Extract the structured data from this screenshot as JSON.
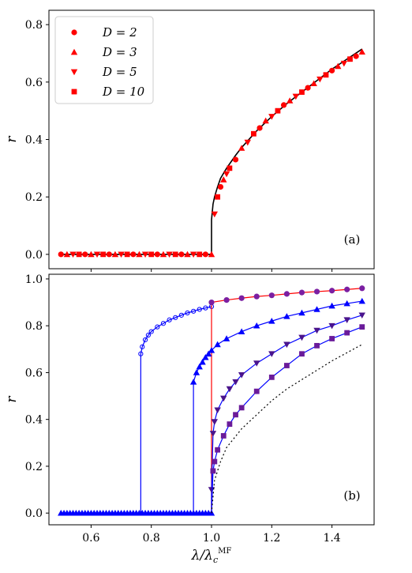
{
  "chart_data": [
    {
      "panel": "a",
      "type": "line",
      "panel_label": "(a)",
      "ylabel": "r",
      "xlabel": "",
      "xlim": [
        0.46,
        1.54
      ],
      "ylim": [
        -0.05,
        0.85
      ],
      "yticks": [
        0.0,
        0.2,
        0.4,
        0.6,
        0.8
      ],
      "ytick_labels": [
        "0.0",
        "0.2",
        "0.4",
        "0.6",
        "0.8"
      ],
      "xticks": [
        0.6,
        0.8,
        1.0,
        1.2,
        1.4
      ],
      "legend": {
        "placement": "upper-left",
        "entries": [
          {
            "label": "D = 2",
            "marker": "circle",
            "color": "#ff0000"
          },
          {
            "label": "D = 3",
            "marker": "triangle-up",
            "color": "#ff0000"
          },
          {
            "label": "D = 5",
            "marker": "triangle-down",
            "color": "#ff0000"
          },
          {
            "label": "D = 10",
            "marker": "square",
            "color": "#ff0000"
          }
        ]
      },
      "curve": {
        "color": "#000000",
        "points": [
          [
            0.5,
            0
          ],
          [
            1.0,
            0
          ],
          [
            1.0,
            0.12
          ],
          [
            1.005,
            0.175
          ],
          [
            1.01,
            0.2
          ],
          [
            1.02,
            0.235
          ],
          [
            1.03,
            0.265
          ],
          [
            1.05,
            0.3
          ],
          [
            1.08,
            0.345
          ],
          [
            1.1,
            0.372
          ],
          [
            1.15,
            0.43
          ],
          [
            1.2,
            0.48
          ],
          [
            1.25,
            0.525
          ],
          [
            1.3,
            0.565
          ],
          [
            1.35,
            0.605
          ],
          [
            1.4,
            0.645
          ],
          [
            1.45,
            0.68
          ],
          [
            1.5,
            0.715
          ]
        ]
      },
      "markers": {
        "color": "#ff0000",
        "points": [
          [
            0.5,
            0
          ],
          [
            0.52,
            0
          ],
          [
            0.54,
            0
          ],
          [
            0.56,
            0
          ],
          [
            0.58,
            0
          ],
          [
            0.6,
            0
          ],
          [
            0.62,
            0
          ],
          [
            0.64,
            0
          ],
          [
            0.66,
            0
          ],
          [
            0.68,
            0
          ],
          [
            0.7,
            0
          ],
          [
            0.72,
            0
          ],
          [
            0.74,
            0
          ],
          [
            0.76,
            0
          ],
          [
            0.78,
            0
          ],
          [
            0.8,
            0
          ],
          [
            0.82,
            0
          ],
          [
            0.84,
            0
          ],
          [
            0.86,
            0
          ],
          [
            0.88,
            0
          ],
          [
            0.9,
            0
          ],
          [
            0.92,
            0
          ],
          [
            0.94,
            0
          ],
          [
            0.96,
            0
          ],
          [
            0.98,
            0
          ],
          [
            1.0,
            0
          ],
          [
            1.01,
            0.14
          ],
          [
            1.02,
            0.2
          ],
          [
            1.03,
            0.235
          ],
          [
            1.04,
            0.26
          ],
          [
            1.05,
            0.28
          ],
          [
            1.06,
            0.3
          ],
          [
            1.08,
            0.33
          ],
          [
            1.1,
            0.37
          ],
          [
            1.12,
            0.39
          ],
          [
            1.14,
            0.42
          ],
          [
            1.16,
            0.44
          ],
          [
            1.18,
            0.465
          ],
          [
            1.2,
            0.48
          ],
          [
            1.22,
            0.5
          ],
          [
            1.24,
            0.52
          ],
          [
            1.26,
            0.535
          ],
          [
            1.28,
            0.55
          ],
          [
            1.3,
            0.565
          ],
          [
            1.32,
            0.58
          ],
          [
            1.34,
            0.595
          ],
          [
            1.36,
            0.61
          ],
          [
            1.38,
            0.625
          ],
          [
            1.4,
            0.64
          ],
          [
            1.42,
            0.655
          ],
          [
            1.44,
            0.665
          ],
          [
            1.46,
            0.68
          ],
          [
            1.48,
            0.69
          ],
          [
            1.5,
            0.705
          ]
        ]
      }
    },
    {
      "panel": "b",
      "type": "line",
      "panel_label": "(b)",
      "ylabel": "r",
      "xlabel": "λ/λcMF",
      "xlim": [
        0.46,
        1.54
      ],
      "ylim": [
        -0.05,
        1.02
      ],
      "yticks": [
        0.0,
        0.2,
        0.4,
        0.6,
        0.8,
        1.0
      ],
      "ytick_labels": [
        "0.0",
        "0.2",
        "0.4",
        "0.6",
        "0.8",
        "1.0"
      ],
      "xticks": [
        0.6,
        0.8,
        1.0,
        1.2,
        1.4
      ],
      "xtick_labels": [
        "0.6",
        "0.8",
        "1.0",
        "1.2",
        "1.4"
      ],
      "series": [
        {
          "marker": "circle-open",
          "line_color": "#0000ff",
          "marker_color": "#0000ff",
          "jump_at": 0.765,
          "jump_value": 0.68,
          "points": [
            [
              0.765,
              0.68
            ],
            [
              0.77,
              0.71
            ],
            [
              0.78,
              0.74
            ],
            [
              0.79,
              0.76
            ],
            [
              0.8,
              0.775
            ],
            [
              0.82,
              0.795
            ],
            [
              0.84,
              0.81
            ],
            [
              0.86,
              0.825
            ],
            [
              0.88,
              0.835
            ],
            [
              0.9,
              0.845
            ],
            [
              0.92,
              0.855
            ],
            [
              0.94,
              0.862
            ],
            [
              0.96,
              0.87
            ],
            [
              0.98,
              0.876
            ],
            [
              1.0,
              0.882
            ]
          ]
        },
        {
          "marker": "circle-filled",
          "line_color": "#ff0000",
          "marker_color": "#7b1fa2",
          "jump_at": 1.0,
          "jump_value": 0.9,
          "points": [
            [
              1.0,
              0.9
            ],
            [
              1.05,
              0.91
            ],
            [
              1.1,
              0.918
            ],
            [
              1.15,
              0.925
            ],
            [
              1.2,
              0.93
            ],
            [
              1.25,
              0.936
            ],
            [
              1.3,
              0.942
            ],
            [
              1.35,
              0.946
            ],
            [
              1.4,
              0.95
            ],
            [
              1.45,
              0.955
            ],
            [
              1.5,
              0.96
            ]
          ]
        },
        {
          "marker": "triangle-up",
          "line_color": "#0000ff",
          "marker_color": "#0000ff",
          "jump_at": 0.94,
          "jump_value": 0.56,
          "points": [
            [
              0.94,
              0.56
            ],
            [
              0.95,
              0.6
            ],
            [
              0.96,
              0.625
            ],
            [
              0.97,
              0.645
            ],
            [
              0.98,
              0.665
            ],
            [
              0.99,
              0.68
            ],
            [
              1.0,
              0.695
            ],
            [
              1.02,
              0.72
            ],
            [
              1.05,
              0.745
            ],
            [
              1.1,
              0.775
            ],
            [
              1.15,
              0.8
            ],
            [
              1.2,
              0.82
            ],
            [
              1.25,
              0.84
            ],
            [
              1.3,
              0.855
            ],
            [
              1.35,
              0.87
            ],
            [
              1.4,
              0.885
            ],
            [
              1.45,
              0.895
            ],
            [
              1.5,
              0.905
            ]
          ]
        },
        {
          "marker": "triangle-down",
          "line_color": "#0000ff",
          "marker_color": "#4a148c",
          "jump_at": 1.0,
          "jump_value": 0.1,
          "points": [
            [
              1.0,
              0.1
            ],
            [
              1.005,
              0.34
            ],
            [
              1.01,
              0.39
            ],
            [
              1.02,
              0.44
            ],
            [
              1.04,
              0.49
            ],
            [
              1.06,
              0.53
            ],
            [
              1.08,
              0.56
            ],
            [
              1.1,
              0.59
            ],
            [
              1.15,
              0.64
            ],
            [
              1.2,
              0.68
            ],
            [
              1.25,
              0.72
            ],
            [
              1.3,
              0.75
            ],
            [
              1.35,
              0.78
            ],
            [
              1.4,
              0.8
            ],
            [
              1.45,
              0.825
            ],
            [
              1.5,
              0.845
            ]
          ]
        },
        {
          "marker": "square",
          "line_color": "#0000ff",
          "marker_color": "#6a1b9a",
          "jump_at": 1.0,
          "jump_value": 0.15,
          "points": [
            [
              1.005,
              0.18
            ],
            [
              1.01,
              0.22
            ],
            [
              1.02,
              0.27
            ],
            [
              1.04,
              0.33
            ],
            [
              1.06,
              0.38
            ],
            [
              1.08,
              0.42
            ],
            [
              1.1,
              0.45
            ],
            [
              1.15,
              0.52
            ],
            [
              1.2,
              0.58
            ],
            [
              1.25,
              0.63
            ],
            [
              1.3,
              0.68
            ],
            [
              1.35,
              0.715
            ],
            [
              1.4,
              0.745
            ],
            [
              1.45,
              0.77
            ],
            [
              1.5,
              0.795
            ]
          ]
        },
        {
          "marker": "none",
          "line_style": "dotted",
          "line_color": "#000000",
          "points": [
            [
              1.0,
              0
            ],
            [
              1.01,
              0.14
            ],
            [
              1.03,
              0.22
            ],
            [
              1.05,
              0.28
            ],
            [
              1.1,
              0.36
            ],
            [
              1.15,
              0.42
            ],
            [
              1.2,
              0.48
            ],
            [
              1.25,
              0.53
            ],
            [
              1.3,
              0.57
            ],
            [
              1.35,
              0.61
            ],
            [
              1.4,
              0.65
            ],
            [
              1.45,
              0.685
            ],
            [
              1.5,
              0.72
            ]
          ]
        }
      ],
      "zero_markers": {
        "from": 0.5,
        "to": 1.0,
        "step": 0.01,
        "color": "#0000ff"
      }
    }
  ]
}
